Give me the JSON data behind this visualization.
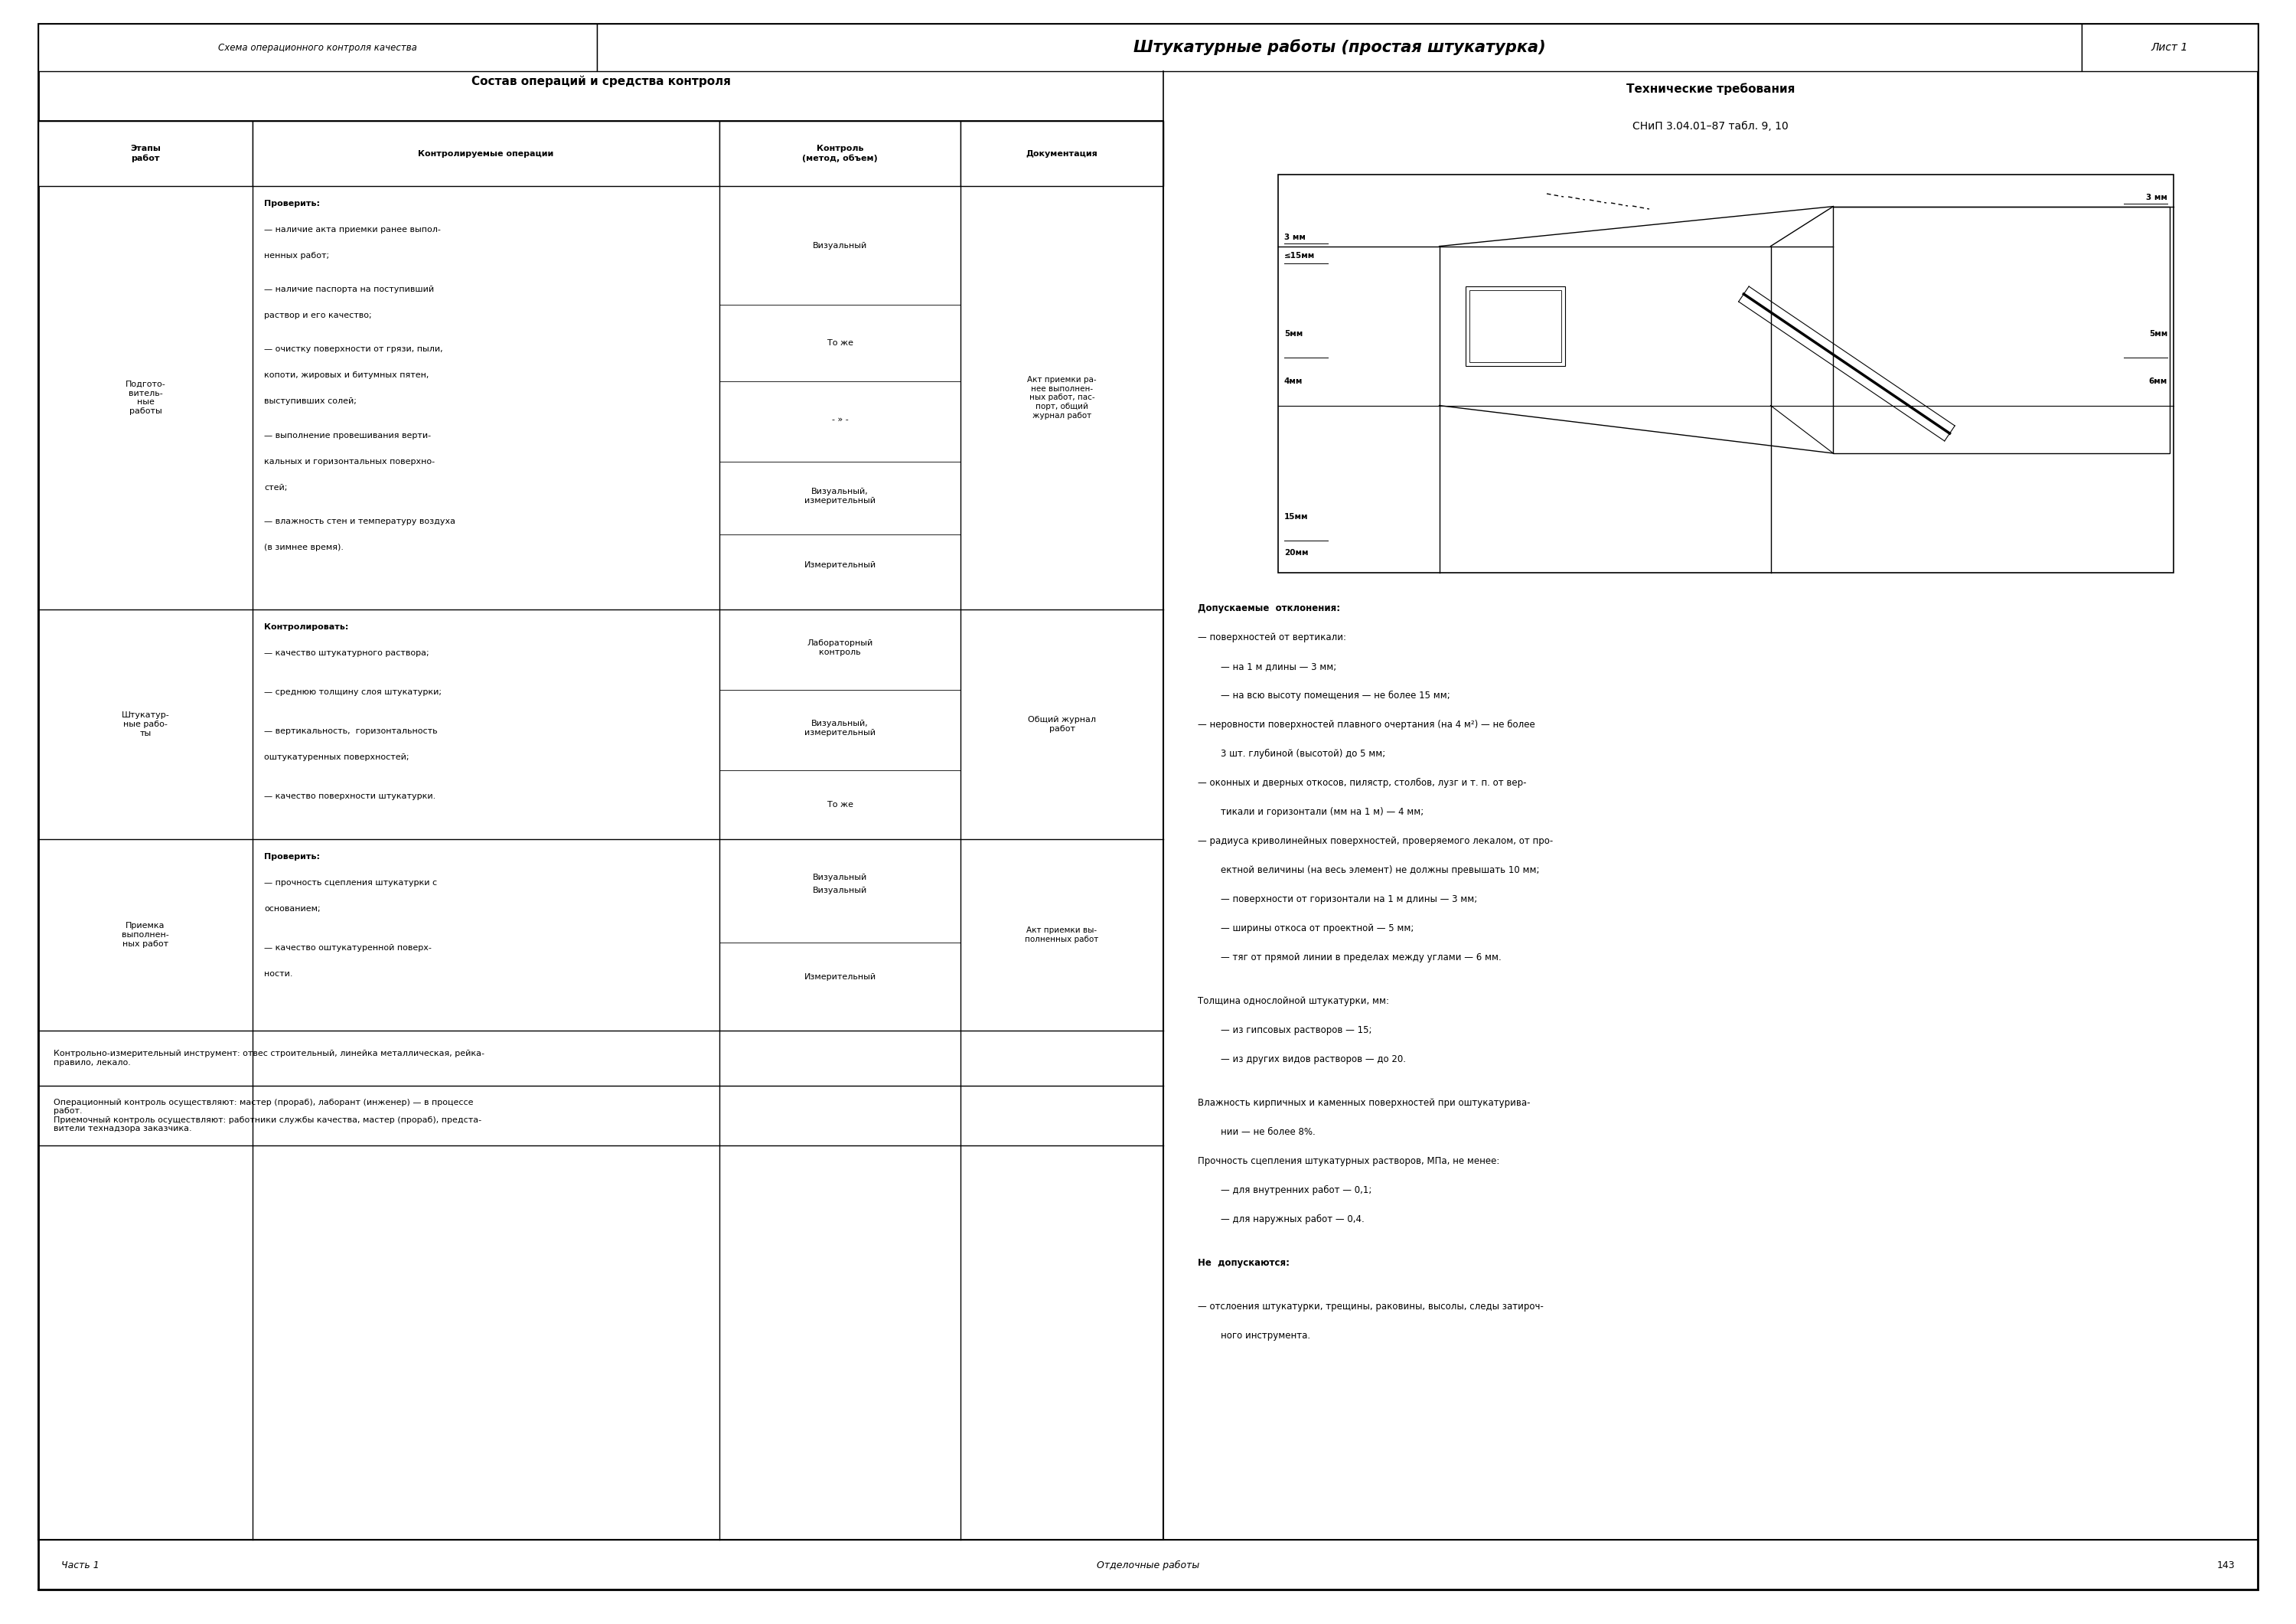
{
  "page_bg": "#ffffff",
  "header": {
    "left_text": "Схема операционного контроля качества",
    "center_text": "Штукатурные работы (простая штукатурка)",
    "right_text": "Лист 1"
  },
  "table_title": "Состав операций и средства контроля",
  "tech_title_line1": "Технические требования",
  "tech_title_line2": "СНиП 3.04.01–87 табл. 9, 10",
  "col_headers": [
    "Этапы\nработ",
    "Контролируемые операции",
    "Контроль\n(метод, объем)",
    "Документация"
  ],
  "bottom_left": "Часть 1",
  "bottom_center": "Отделочные работы",
  "bottom_right": "143"
}
